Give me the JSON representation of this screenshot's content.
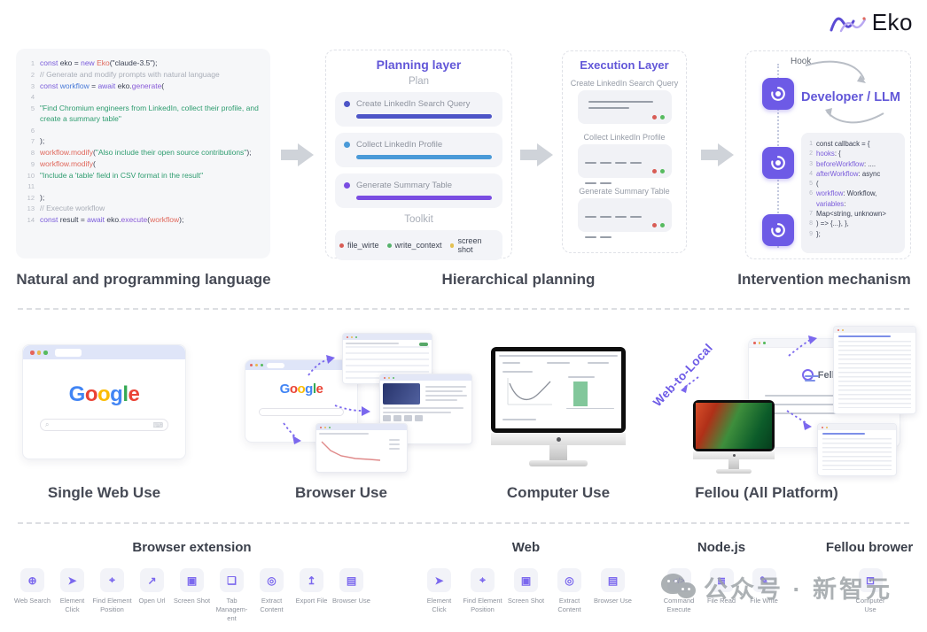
{
  "logo": {
    "text": "Eko"
  },
  "top": {
    "code": {
      "lines": [
        {
          "n": "1",
          "t": [
            [
              "k",
              "const "
            ],
            [
              "d",
              "eko = "
            ],
            [
              "k",
              "new "
            ],
            [
              "r",
              "Eko"
            ],
            [
              "d",
              "(\"claude-3.5\");"
            ]
          ]
        },
        {
          "n": "2",
          "t": [
            [
              "c",
              "// Generate and modify prompts with natural language"
            ]
          ]
        },
        {
          "n": "3",
          "t": [
            [
              "k",
              "const "
            ],
            [
              "v",
              "workflow"
            ],
            [
              "d",
              " = "
            ],
            [
              "k",
              "await "
            ],
            [
              "d",
              "eko."
            ],
            [
              "f",
              "generate"
            ],
            [
              "d",
              "("
            ]
          ]
        },
        {
          "n": "4",
          "t": []
        },
        {
          "n": "5",
          "t": [
            [
              "s",
              "\"Find Chromium engineers from LinkedIn, collect their profile, and create a summary table\""
            ]
          ]
        },
        {
          "n": "6",
          "t": []
        },
        {
          "n": "7",
          "t": [
            [
              "d",
              ");"
            ]
          ]
        },
        {
          "n": "8",
          "t": [
            [
              "r",
              "workflow.modify"
            ],
            [
              "d",
              "("
            ],
            [
              "s",
              "\"Also include their open source contributions\""
            ],
            [
              "d",
              ");"
            ]
          ]
        },
        {
          "n": "9",
          "t": [
            [
              "r",
              "workflow.modify"
            ],
            [
              "d",
              "("
            ]
          ]
        },
        {
          "n": "10",
          "t": [
            [
              "s",
              "\"Include a 'table' field in CSV format in the result\""
            ]
          ]
        },
        {
          "n": "11",
          "t": []
        },
        {
          "n": "12",
          "t": [
            [
              "d",
              ");"
            ]
          ]
        },
        {
          "n": "13",
          "t": [
            [
              "c",
              "// Execute workflow"
            ]
          ]
        },
        {
          "n": "14",
          "t": [
            [
              "k",
              "const "
            ],
            [
              "d",
              "result = "
            ],
            [
              "k",
              "await "
            ],
            [
              "d",
              "eko."
            ],
            [
              "f",
              "execute"
            ],
            [
              "d",
              "("
            ],
            [
              "r",
              "workflow"
            ],
            [
              "d",
              ");"
            ]
          ]
        }
      ]
    },
    "planning": {
      "title": "Planning layer",
      "plan_label": "Plan",
      "toolkit_label": "Toolkit",
      "tasks": [
        {
          "label": "Create LinkedIn Search Query",
          "color": "#4d55c7"
        },
        {
          "label": "Collect LinkedIn Profile",
          "color": "#4a9ad8"
        },
        {
          "label": "Generate Summary Table",
          "color": "#7a4de2"
        }
      ],
      "toolkit": [
        {
          "label": "file_wirte",
          "color": "#d85c55"
        },
        {
          "label": "write_context",
          "color": "#55b26b"
        },
        {
          "label": "screen shot",
          "color": "#e3c052"
        }
      ]
    },
    "execution": {
      "title": "Execution Layer",
      "steps": [
        {
          "label": "Create LinkedIn Search Query"
        },
        {
          "label": "Collect LinkedIn Profile"
        },
        {
          "label": "Generate Summary Table"
        }
      ]
    },
    "intervention": {
      "hook_label": "Hook",
      "title": "Developer / LLM",
      "code": {
        "lines": [
          {
            "n": "1",
            "t": [
              [
                "d",
                "const callback = {"
              ]
            ]
          },
          {
            "n": "2",
            "t": [
              [
                "p",
                "hooks"
              ],
              [
                "d",
                ": {"
              ]
            ]
          },
          {
            "n": "3",
            "t": [
              [
                "p",
                "beforeWorkflow"
              ],
              [
                "d",
                ": ...."
              ]
            ]
          },
          {
            "n": "4",
            "t": [
              [
                "p",
                "afterWorkflow"
              ],
              [
                "d",
                ": async"
              ]
            ]
          },
          {
            "n": "5",
            "t": [
              [
                "d",
                "("
              ]
            ]
          },
          {
            "n": "6",
            "t": [
              [
                "p",
                "workflow"
              ],
              [
                "d",
                ": Workflow, "
              ],
              [
                "p",
                "variables"
              ],
              [
                "d",
                ":"
              ]
            ]
          },
          {
            "n": "7",
            "t": [
              [
                "d",
                "Map<string, unknown>"
              ]
            ]
          },
          {
            "n": "8",
            "t": [
              [
                "d",
                ") => {...}, },"
              ]
            ]
          },
          {
            "n": "9",
            "t": [
              [
                "d",
                "};"
              ]
            ]
          }
        ]
      }
    },
    "captions": [
      "Natural and programming language",
      "Hierarchical planning",
      "Intervention mechanism"
    ]
  },
  "middle": {
    "google_letters": [
      [
        "G",
        "#4285F4"
      ],
      [
        "o",
        "#EA4335"
      ],
      [
        "o",
        "#FBBC05"
      ],
      [
        "g",
        "#4285F4"
      ],
      [
        "l",
        "#34A853"
      ],
      [
        "e",
        "#EA4335"
      ]
    ],
    "web_to_local": "Web-to-Local",
    "fellou_title": "Fellou",
    "captions": [
      "Single Web Use",
      "Browser Use",
      "Computer Use",
      "Fellou (All Platform)"
    ]
  },
  "bottom": {
    "groups": [
      {
        "title": "Browser extension",
        "tools": [
          {
            "name": "web-search",
            "glyph": "⊕",
            "label": "Web Search"
          },
          {
            "name": "element-click",
            "glyph": "➤",
            "label": "Element Click"
          },
          {
            "name": "find-element-position",
            "glyph": "⌖",
            "label": "Find Element Position"
          },
          {
            "name": "open-url",
            "glyph": "↗",
            "label": "Open Url"
          },
          {
            "name": "screen-shot",
            "glyph": "▣",
            "label": "Screen Shot"
          },
          {
            "name": "tab-management",
            "glyph": "❏",
            "label": "Tab Managem- ent"
          },
          {
            "name": "extract-content",
            "glyph": "◎",
            "label": "Extract Content"
          },
          {
            "name": "export-file",
            "glyph": "↥",
            "label": "Export File"
          },
          {
            "name": "browser-use",
            "glyph": "▤",
            "label": "Browser Use"
          }
        ]
      },
      {
        "title": "Web",
        "tools": [
          {
            "name": "element-click",
            "glyph": "➤",
            "label": "Element Click"
          },
          {
            "name": "find-element-position",
            "glyph": "⌖",
            "label": "Find Element Position"
          },
          {
            "name": "screen-shot",
            "glyph": "▣",
            "label": "Screen Shot"
          },
          {
            "name": "extract-content",
            "glyph": "◎",
            "label": "Extract Content"
          },
          {
            "name": "browser-use",
            "glyph": "▤",
            "label": "Browser Use"
          }
        ]
      },
      {
        "title": "Node.js",
        "tools": [
          {
            "name": "command-execute",
            "glyph": "</>",
            "label": "Command Execute"
          },
          {
            "name": "file-read",
            "glyph": "≣",
            "label": "File Read"
          },
          {
            "name": "file-write",
            "glyph": "✎",
            "label": "File Write"
          }
        ]
      },
      {
        "title": "Fellou brower",
        "tools": [
          {
            "name": "computer-use",
            "glyph": "⊡",
            "label": "Computer Use"
          }
        ]
      }
    ]
  },
  "watermark": {
    "text": "公众号 · 新智元"
  }
}
